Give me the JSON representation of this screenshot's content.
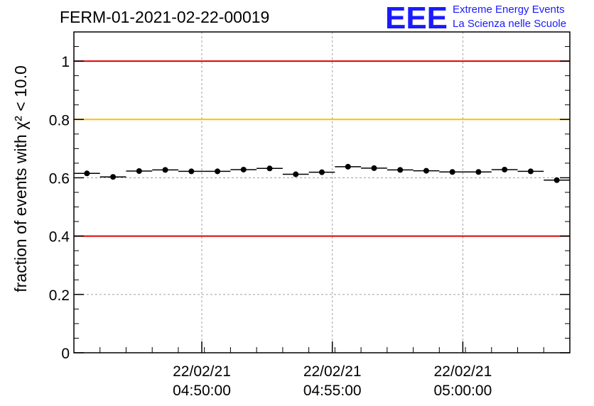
{
  "title": "FERM-01-2021-02-22-00019",
  "logo": {
    "mark": "EEE",
    "line1": "Extreme Energy Events",
    "line2": "La Scienza nelle Scuole",
    "color": "#1a1aff"
  },
  "chart_data": {
    "type": "scatter",
    "ylabel": "fraction of events with χ² < 10.0",
    "ylim": [
      0,
      1.1
    ],
    "xlim_minutes": [
      0,
      19
    ],
    "y_ticks": [
      {
        "value": 0,
        "label": "0"
      },
      {
        "value": 0.2,
        "label": "0.2"
      },
      {
        "value": 0.4,
        "label": "0.4"
      },
      {
        "value": 0.6,
        "label": "0.6"
      },
      {
        "value": 0.8,
        "label": "0.8"
      },
      {
        "value": 1,
        "label": "1"
      }
    ],
    "x_ticks": [
      {
        "date": "22/02/21",
        "time": "04:50:00"
      },
      {
        "date": "22/02/21",
        "time": "04:55:00"
      },
      {
        "date": "22/02/21",
        "time": "05:00:00"
      }
    ],
    "grid": true,
    "reference_lines": [
      {
        "y": 1.0,
        "color": "#e00000"
      },
      {
        "y": 0.8,
        "color": "#ffc000"
      },
      {
        "y": 0.4,
        "color": "#e00000"
      }
    ],
    "x_bin_start_times": [
      "04:45:06",
      "04:46:06",
      "04:47:06",
      "04:48:06",
      "04:49:06",
      "04:50:06",
      "04:51:06",
      "04:52:06",
      "04:53:06",
      "04:54:06",
      "04:55:06",
      "04:56:06",
      "04:57:06",
      "04:58:06",
      "04:59:06",
      "05:00:06",
      "05:01:06",
      "05:02:06",
      "05:03:06"
    ],
    "values": [
      0.615,
      0.603,
      0.623,
      0.627,
      0.622,
      0.622,
      0.628,
      0.632,
      0.612,
      0.619,
      0.638,
      0.633,
      0.627,
      0.624,
      0.62,
      0.62,
      0.628,
      0.622,
      0.592
    ]
  }
}
